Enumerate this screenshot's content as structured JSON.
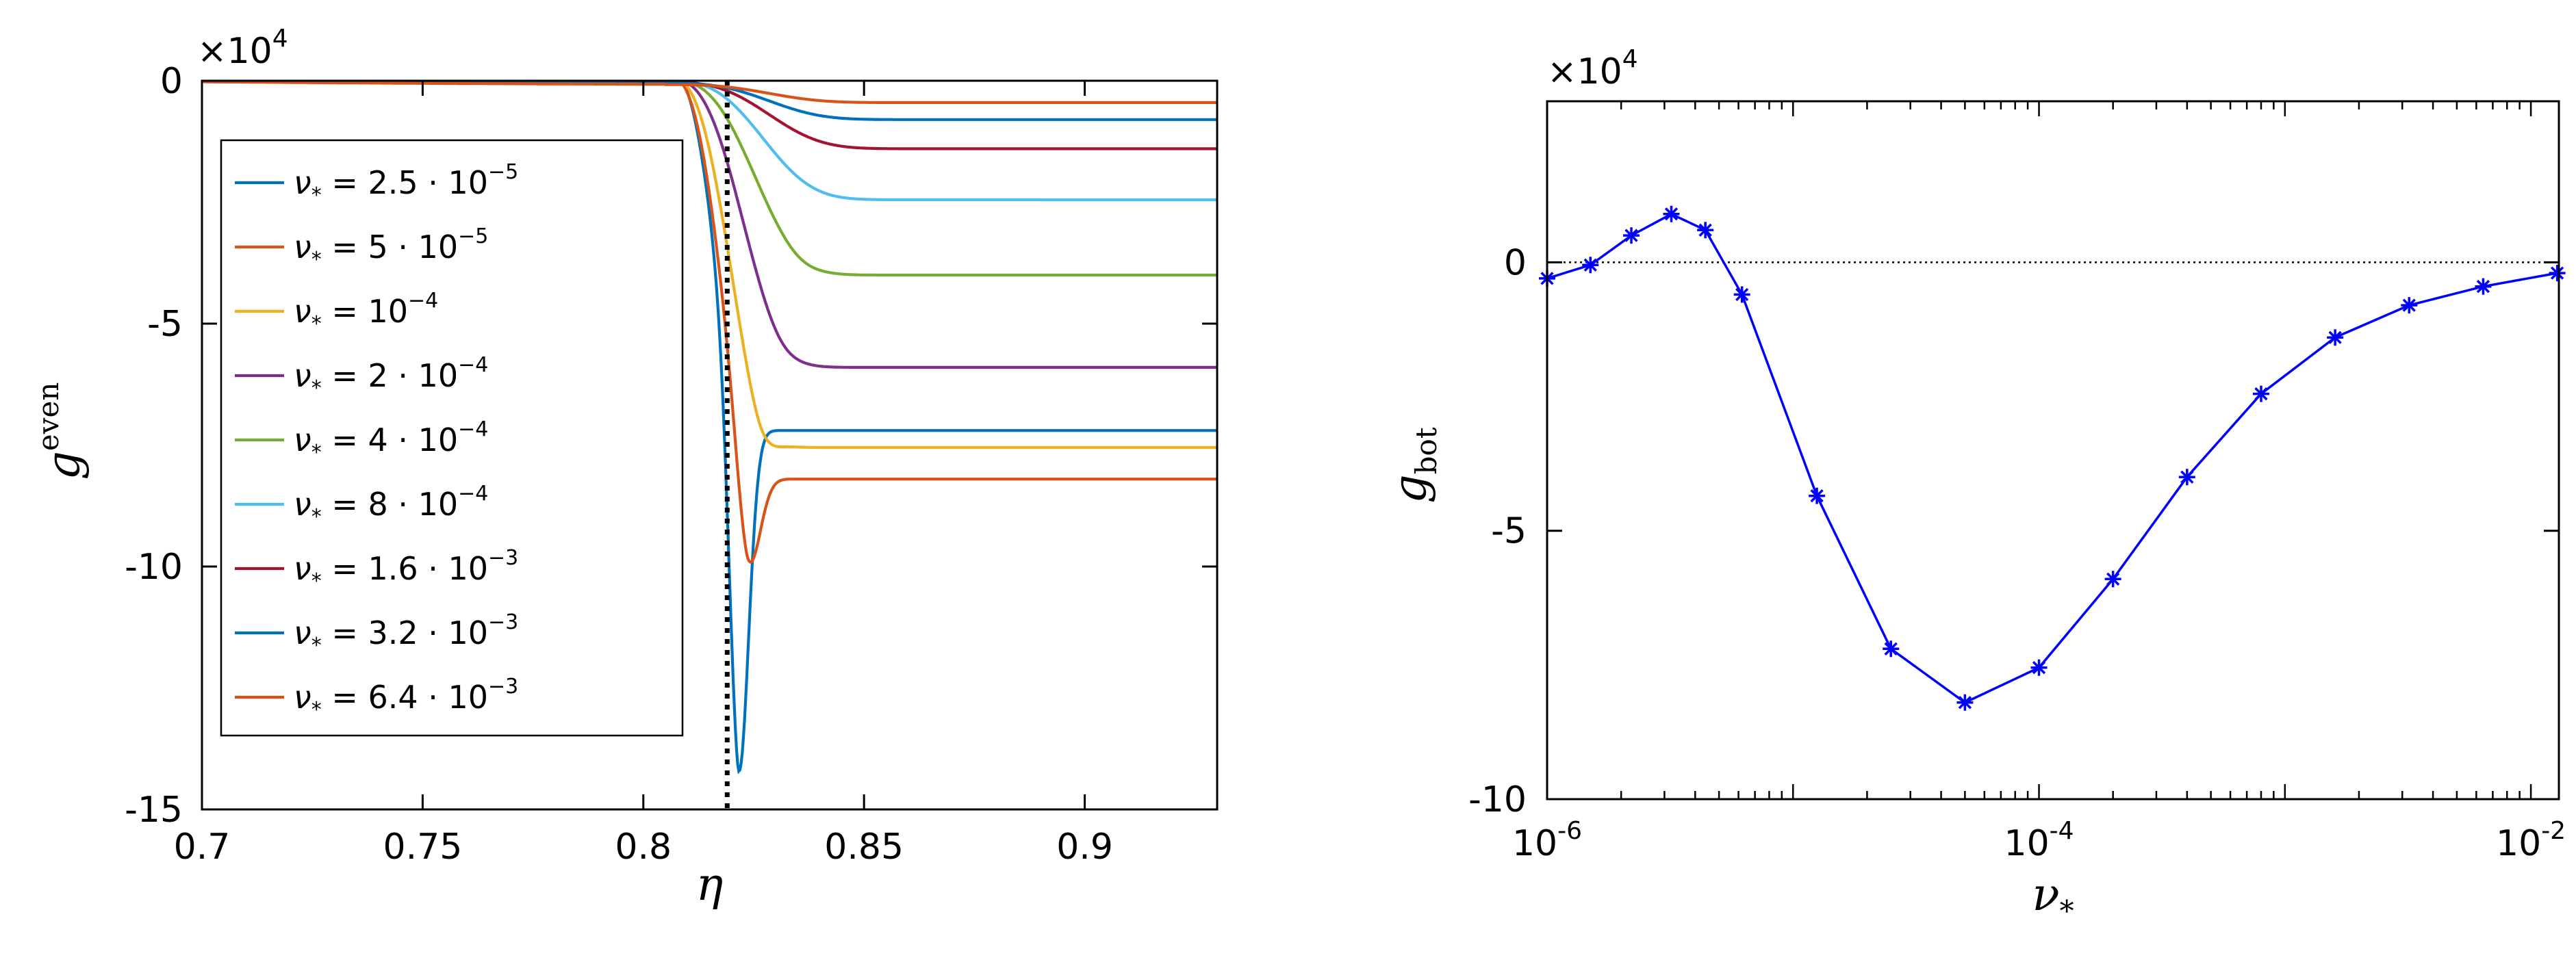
{
  "chart_data": [
    {
      "type": "line",
      "ylabel_main": "g",
      "ylabel_sup": "even",
      "xlabel": "η",
      "xlim": [
        0.7,
        0.93
      ],
      "ylim": [
        -15,
        0
      ],
      "y_multiplier": "×10",
      "y_multiplier_exp": "4",
      "xticks": [
        "0.7",
        "0.75",
        "0.8",
        "0.85",
        "0.9"
      ],
      "xtick_values": [
        0.7,
        0.75,
        0.8,
        0.85,
        0.9
      ],
      "yticks": [
        "0",
        "-5",
        "-10",
        "-15"
      ],
      "ytick_values": [
        0,
        -5,
        -10,
        -15
      ],
      "vline_x": 0.819,
      "legend_position": "left",
      "series": [
        {
          "name": "2.5·10⁻⁵",
          "base": "ν",
          "sub": "*",
          "eq": " = 2.5 · 10",
          "sup": "−5",
          "color": "#0072BD",
          "y_inf": -7.2,
          "y_min": -15.0,
          "x_min": 0.8215,
          "y0": 0.2
        },
        {
          "name": "5·10⁻⁵",
          "base": "ν",
          "sub": "*",
          "eq": " = 5 · 10",
          "sup": "−5",
          "color": "#D95319",
          "y_inf": -8.2,
          "y_min": -10.7,
          "x_min": 0.8235,
          "y0": 0.1
        },
        {
          "name": "10⁻⁴",
          "base": "ν",
          "sub": "*",
          "eq": " = 10",
          "sup": "−4",
          "color": "#EDB120",
          "y_inf": -7.55,
          "y_min": -7.95,
          "x_min": 0.8265,
          "y0": 0.08
        },
        {
          "name": "2·10⁻⁴",
          "base": "ν",
          "sub": "*",
          "eq": " = 2 · 10",
          "sup": "−4",
          "color": "#7E2F8E",
          "y_inf": -5.9,
          "y_min": -5.98,
          "x_min": 0.831,
          "y0": 0.05
        },
        {
          "name": "4·10⁻⁴",
          "base": "ν",
          "sub": "*",
          "eq": " = 4 · 10",
          "sup": "−4",
          "color": "#77AC30",
          "y_inf": -4.0,
          "y_min": -4.05,
          "x_min": 0.835,
          "y0": 0.02
        },
        {
          "name": "8·10⁻⁴",
          "base": "ν",
          "sub": "*",
          "eq": " = 8 · 10",
          "sup": "−4",
          "color": "#4DBEEE",
          "y_inf": -2.45,
          "y_min": -2.47,
          "x_min": 0.838,
          "y0": 0.0
        },
        {
          "name": "1.6·10⁻³",
          "base": "ν",
          "sub": "*",
          "eq": " = 1.6 · 10",
          "sup": "−3",
          "color": "#A2142F",
          "y_inf": -1.4,
          "y_min": -1.4,
          "x_min": 0.84,
          "y0": -0.03
        },
        {
          "name": "3.2·10⁻³",
          "base": "ν",
          "sub": "*",
          "eq": " = 3.2 · 10",
          "sup": "−3",
          "color": "#0072BD",
          "y_inf": -0.8,
          "y_min": -0.8,
          "x_min": 0.84,
          "y0": -0.05
        },
        {
          "name": "6.4·10⁻³",
          "base": "ν",
          "sub": "*",
          "eq": " = 6.4 · 10",
          "sup": "−3",
          "color": "#D95319",
          "y_inf": -0.45,
          "y_min": -0.45,
          "x_min": 0.84,
          "y0": -0.08
        }
      ]
    },
    {
      "type": "line",
      "ylabel_main": "g",
      "ylabel_sub": "bot",
      "xlabel_main": "ν",
      "xlabel_sub": "*",
      "xscale": "log",
      "xlim": [
        1e-06,
        0.013
      ],
      "ylim": [
        -10,
        3
      ],
      "y_multiplier": "×10",
      "y_multiplier_exp": "4",
      "xticks": [
        {
          "base": "10",
          "exp": "-6",
          "value": 1e-06
        },
        {
          "base": "10",
          "exp": "-4",
          "value": 0.0001
        },
        {
          "base": "10",
          "exp": "-2",
          "value": 0.01
        }
      ],
      "yticks": [
        "0",
        "-5",
        "-10"
      ],
      "ytick_values": [
        0,
        -5,
        -10
      ],
      "zero_line": true,
      "marker": "*",
      "color": "#0000FF",
      "x": [
        1e-06,
        1.5e-06,
        2.2e-06,
        3.2e-06,
        4.4e-06,
        6.2e-06,
        1.25e-05,
        2.5e-05,
        5e-05,
        0.0001,
        0.0002,
        0.0004,
        0.0008,
        0.0016,
        0.0032,
        0.0064,
        0.0128
      ],
      "y": [
        -0.3,
        -0.05,
        0.5,
        0.9,
        0.6,
        -0.6,
        -4.35,
        -7.2,
        -8.2,
        -7.55,
        -5.9,
        -4.0,
        -2.45,
        -1.4,
        -0.8,
        -0.45,
        -0.2
      ]
    }
  ]
}
